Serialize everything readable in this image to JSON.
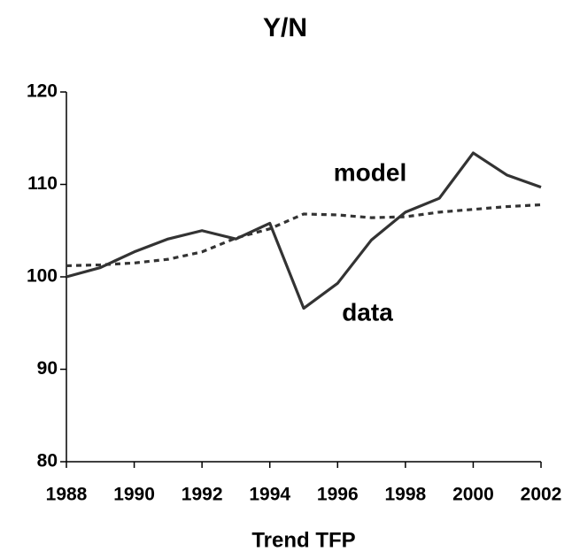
{
  "chart_data": {
    "type": "line",
    "title": "Y/N",
    "xlabel": "Trend TFP",
    "x": [
      1988,
      1989,
      1990,
      1991,
      1992,
      1993,
      1994,
      1995,
      1996,
      1997,
      1998,
      1999,
      2000,
      2001,
      2002
    ],
    "series": [
      {
        "name": "data",
        "color": "#333333",
        "dash": false,
        "values": [
          100,
          101,
          102.7,
          104.1,
          105,
          104.1,
          105.8,
          96.6,
          99.3,
          104,
          107,
          108.5,
          113.4,
          111,
          109.7
        ]
      },
      {
        "name": "model",
        "color": "#333333",
        "dash": true,
        "values": [
          101.2,
          101.3,
          101.5,
          101.9,
          102.7,
          104.2,
          105.2,
          106.8,
          106.7,
          106.4,
          106.5,
          107.0,
          107.3,
          107.6,
          107.8
        ]
      }
    ],
    "xlim": [
      1988,
      2002
    ],
    "xticks": [
      1988,
      1990,
      1992,
      1994,
      1996,
      1998,
      2000,
      2002
    ],
    "ylim": [
      80,
      120
    ],
    "yticks": [
      80,
      90,
      100,
      110,
      120
    ],
    "grid": false
  }
}
